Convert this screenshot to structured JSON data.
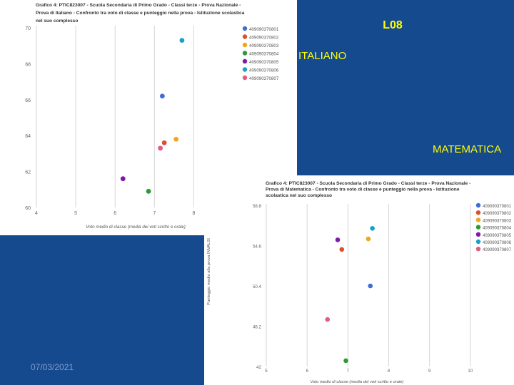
{
  "slide": {
    "title": "L08",
    "label_italiano": "ITALIANO",
    "label_matematica": "MATEMATICA",
    "date": "07/03/2021"
  },
  "legend_colors": [
    "#3d6dd6",
    "#d9512c",
    "#f0a51f",
    "#2b9a33",
    "#7d1aa6",
    "#1aa0c8",
    "#e05c85"
  ],
  "chart_data": [
    {
      "type": "scatter",
      "title": "Grafico 4: PTIC823007 - Scuola Secondaria di Primo Grado - Classi terze - Prova Nazionale - Prova di Italiano - Confronto tra voto di classe e punteggio nella prova - Istituzione scolastica nel suo complesso",
      "title_lines": [
        "Grafico 4: PTIC823007 - Scuola Secondaria di Primo Grado - Classi terze - Prova Nazionale -",
        "Prova di Italiano - Confronto tra voto di classe e punteggio nella prova - Istituzione scolastica",
        "nel suo complesso"
      ],
      "xlabel": "Voto medio di classe (media dei voti scritto e orale)",
      "ylabel": "",
      "xlim": [
        4,
        8.5
      ],
      "ylim": [
        60,
        70
      ],
      "xticks": [
        "4",
        "5",
        "6",
        "7",
        "8"
      ],
      "yticks": [
        "60",
        "62",
        "64",
        "66",
        "68",
        "70"
      ],
      "grid": true,
      "legend_position": "right",
      "series": [
        {
          "name": "409090370801",
          "color": "#3d6dd6",
          "x": 7.2,
          "y": 66.2
        },
        {
          "name": "409090370802",
          "color": "#d9512c",
          "x": 7.25,
          "y": 63.6
        },
        {
          "name": "409090370803",
          "color": "#f0a51f",
          "x": 7.55,
          "y": 63.8
        },
        {
          "name": "409090370804",
          "color": "#2b9a33",
          "x": 6.85,
          "y": 60.9
        },
        {
          "name": "409090370805",
          "color": "#7d1aa6",
          "x": 6.2,
          "y": 61.6
        },
        {
          "name": "409090370806",
          "color": "#1aa0c8",
          "x": 7.7,
          "y": 69.3
        },
        {
          "name": "409090370807",
          "color": "#e05c85",
          "x": 7.15,
          "y": 63.3
        }
      ]
    },
    {
      "type": "scatter",
      "title": "Grafico 4: PTIC823007 - Scuola Secondaria di Primo Grado - Classi terze - Prova Nazionale - Prova di Matematica - Confronto tra voto di classe e punteggio nella prova - Istituzione scolastica nel suo complesso",
      "title_lines": [
        "Grafico 4: PTIC823007 - Scuola Secondaria di Primo Grado - Classi terze - Prova Nazionale -",
        "Prova di Matematica - Confronto tra voto di classe e punteggio nella prova - Istituzione",
        "scolastica nel suo complesso"
      ],
      "xlabel": "Voto medio di classe (media dei voti scritto e orale)",
      "ylabel": "Punteggio medio alla prova INVALSI",
      "xlim": [
        5,
        10.3
      ],
      "ylim": [
        42,
        58.8
      ],
      "xticks": [
        "5",
        "6",
        "7",
        "8",
        "9",
        "10"
      ],
      "yticks": [
        "42",
        "46.2",
        "50.4",
        "54.6",
        "58.8"
      ],
      "grid": true,
      "legend_position": "right",
      "series": [
        {
          "name": "409090370801",
          "color": "#3d6dd6",
          "x": 7.55,
          "y": 50.4
        },
        {
          "name": "409090370802",
          "color": "#d9512c",
          "x": 6.85,
          "y": 54.2
        },
        {
          "name": "409090370803",
          "color": "#f0a51f",
          "x": 7.5,
          "y": 55.3
        },
        {
          "name": "409090370804",
          "color": "#2b9a33",
          "x": 6.95,
          "y": 42.6
        },
        {
          "name": "409090370805",
          "color": "#7d1aa6",
          "x": 6.75,
          "y": 55.2
        },
        {
          "name": "409090370806",
          "color": "#1aa0c8",
          "x": 7.6,
          "y": 56.4
        },
        {
          "name": "409090370807",
          "color": "#e05c85",
          "x": 6.5,
          "y": 46.9
        }
      ]
    }
  ]
}
